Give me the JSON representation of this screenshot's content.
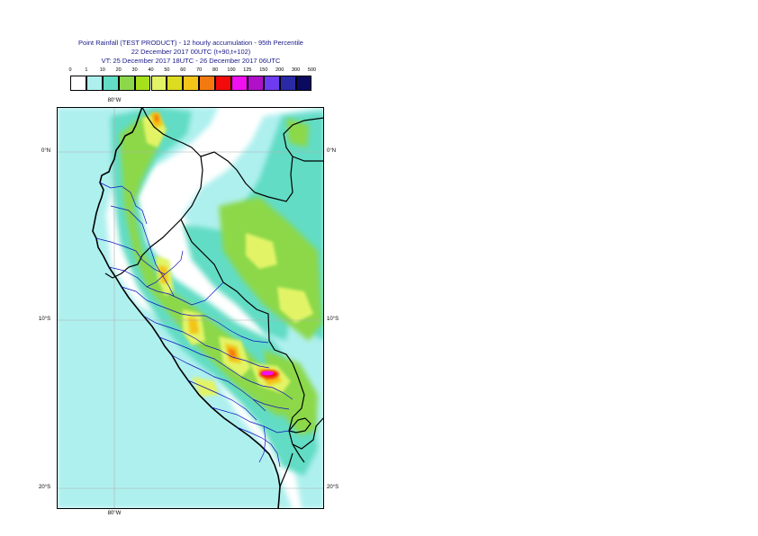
{
  "header": {
    "line1": "Point Rainfall (TEST PRODUCT) - 12 hourly accumulation - 95th Percentile",
    "line2": "22 December 2017 00UTC (t+90,t+102)",
    "line3": "VT: 25 December 2017 18UTC - 26 December 2017 06UTC"
  },
  "legend": {
    "thresholds": [
      "0",
      "1",
      "10",
      "20",
      "30",
      "40",
      "50",
      "60",
      "70",
      "80",
      "100",
      "125",
      "150",
      "200",
      "300",
      "500"
    ],
    "colors": [
      "#ffffff",
      "#aef0ee",
      "#62dcc4",
      "#8cd84a",
      "#a6e01c",
      "#e2f466",
      "#dcdc20",
      "#f4c418",
      "#f47a10",
      "#f40a0a",
      "#f010f0",
      "#b010c8",
      "#6e3cf0",
      "#2a2aa6",
      "#0a0a60"
    ]
  },
  "map": {
    "lat_labels": [
      "0°N",
      "10°S",
      "20°S"
    ],
    "lon_labels": [
      "80°W"
    ],
    "colors": {
      "sea": "#ffffff",
      "coast": "#000000",
      "national_border": "#000000",
      "regional_border": "#1010c0",
      "grid": "#b0b0b0"
    }
  }
}
